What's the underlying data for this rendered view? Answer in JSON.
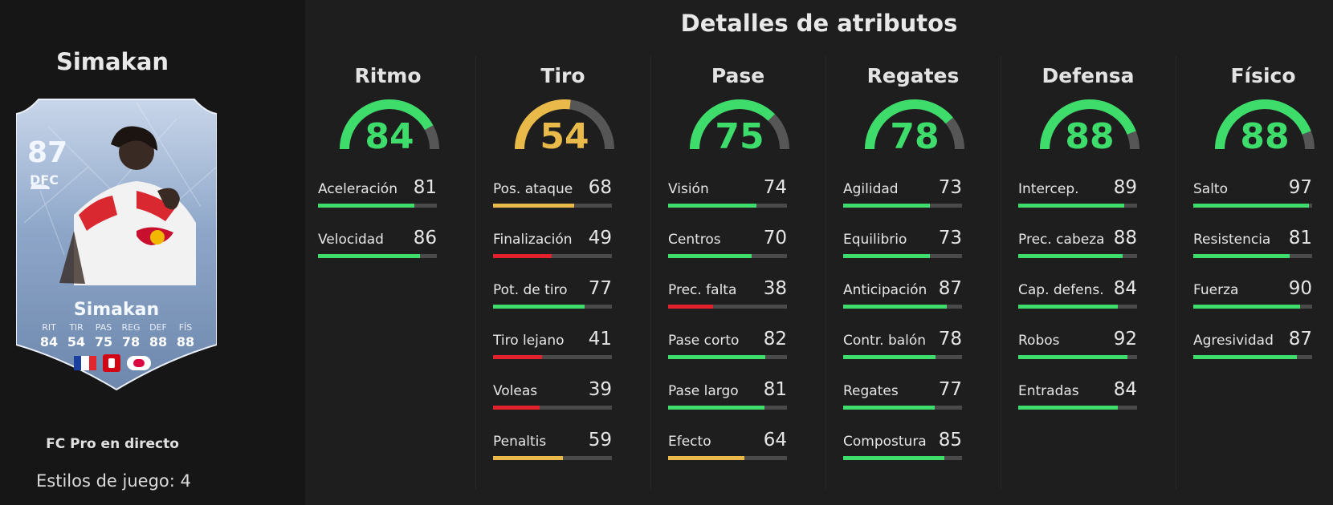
{
  "colors": {
    "green": "#3ddc6b",
    "yellow": "#e9b949",
    "red": "#e3212d",
    "track": "#4a4a4a",
    "gauge_track": "#565656"
  },
  "player": {
    "name": "Simakan",
    "version": "FC Pro en directo",
    "playstyles_label": "Estilos de juego: 4"
  },
  "card": {
    "rating": "87",
    "position": "DFC",
    "name": "Simakan",
    "stats": [
      {
        "label": "RIT",
        "value": "84"
      },
      {
        "label": "TIR",
        "value": "54"
      },
      {
        "label": "PAS",
        "value": "75"
      },
      {
        "label": "REG",
        "value": "78"
      },
      {
        "label": "DEF",
        "value": "88"
      },
      {
        "label": "FÍS",
        "value": "88"
      }
    ],
    "nation_icon": "france-flag-icon",
    "league_icon": "bundesliga-icon",
    "club_icon": "rb-leipzig-icon"
  },
  "title": "Detalles de atributos",
  "categories": [
    {
      "name": "Ritmo",
      "value": 84,
      "attributes": [
        {
          "name": "Aceleración",
          "value": 81
        },
        {
          "name": "Velocidad",
          "value": 86
        }
      ]
    },
    {
      "name": "Tiro",
      "value": 54,
      "attributes": [
        {
          "name": "Pos. ataque",
          "value": 68
        },
        {
          "name": "Finalización",
          "value": 49
        },
        {
          "name": "Pot. de tiro",
          "value": 77
        },
        {
          "name": "Tiro lejano",
          "value": 41
        },
        {
          "name": "Voleas",
          "value": 39
        },
        {
          "name": "Penaltis",
          "value": 59
        }
      ]
    },
    {
      "name": "Pase",
      "value": 75,
      "attributes": [
        {
          "name": "Visión",
          "value": 74
        },
        {
          "name": "Centros",
          "value": 70
        },
        {
          "name": "Prec. falta",
          "value": 38
        },
        {
          "name": "Pase corto",
          "value": 82
        },
        {
          "name": "Pase largo",
          "value": 81
        },
        {
          "name": "Efecto",
          "value": 64
        }
      ]
    },
    {
      "name": "Regates",
      "value": 78,
      "attributes": [
        {
          "name": "Agilidad",
          "value": 73
        },
        {
          "name": "Equilibrio",
          "value": 73
        },
        {
          "name": "Anticipación",
          "value": 87
        },
        {
          "name": "Contr. balón",
          "value": 78
        },
        {
          "name": "Regates",
          "value": 77
        },
        {
          "name": "Compostura",
          "value": 85
        }
      ]
    },
    {
      "name": "Defensa",
      "value": 88,
      "attributes": [
        {
          "name": "Intercep.",
          "value": 89
        },
        {
          "name": "Prec. cabeza",
          "value": 88
        },
        {
          "name": "Cap. defens.",
          "value": 84
        },
        {
          "name": "Robos",
          "value": 92
        },
        {
          "name": "Entradas",
          "value": 84
        }
      ]
    },
    {
      "name": "Físico",
      "value": 88,
      "attributes": [
        {
          "name": "Salto",
          "value": 97
        },
        {
          "name": "Resistencia",
          "value": 81
        },
        {
          "name": "Fuerza",
          "value": 90
        },
        {
          "name": "Agresividad",
          "value": 87
        }
      ]
    }
  ]
}
